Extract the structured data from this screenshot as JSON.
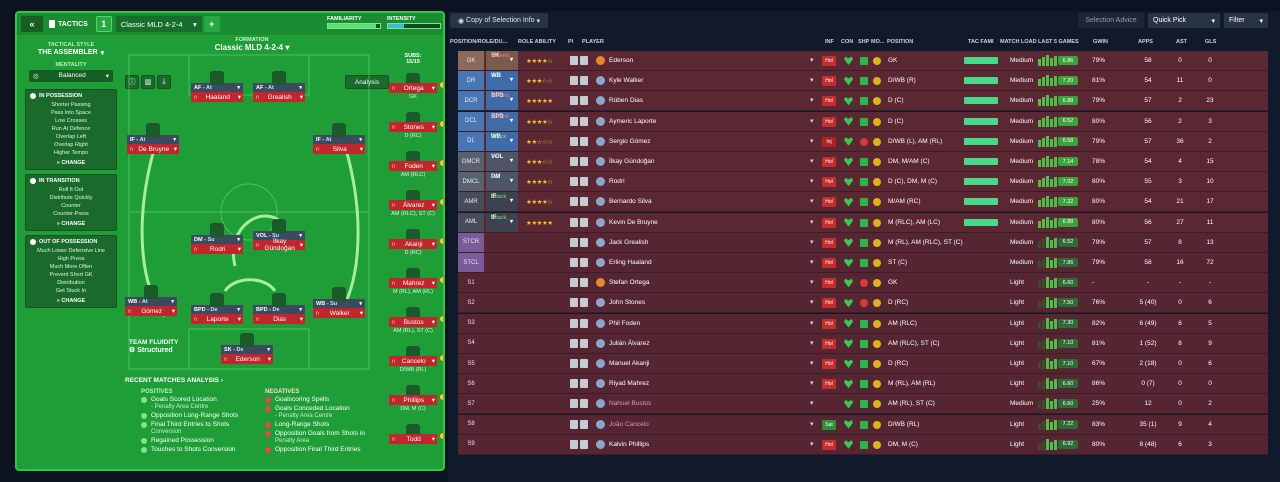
{
  "topbar": {
    "collapse": "«",
    "tactics_label": "TACTICS",
    "tactic_number": "1",
    "tactic_name": "Classic MLD 4-2-4",
    "add": "+",
    "familiarity_label": "FAMILIARITY",
    "familiarity_level": 0.92,
    "intensity_label": "INTENSITY",
    "intensity_level": 0.3
  },
  "sidebar": {
    "style_label": "TACTICAL STYLE",
    "style_value": "THE ASSEMBLER",
    "mentality_label": "MENTALITY",
    "mentality_value": "Balanced",
    "in_possession": {
      "title": "IN POSSESSION",
      "items": [
        "Shorter Passing",
        "Pass Into Space",
        "Low Crosses",
        "Run At Defence",
        "Overlap Left",
        "Overlap Right",
        "Higher Tempo"
      ],
      "change": "CHANGE"
    },
    "in_transition": {
      "title": "IN TRANSITION",
      "items": [
        "Roll It Out",
        "Distribute Quickly",
        "Counter",
        "Counter-Press"
      ],
      "change": "CHANGE"
    },
    "out_of_possession": {
      "title": "OUT OF POSSESSION",
      "items": [
        "Much Lower Defensive Line",
        "High Press",
        "Much More Often",
        "Prevent Short GK",
        "Distribution",
        "Get Stuck In"
      ],
      "change": "CHANGE"
    }
  },
  "formation": {
    "label": "FORMATION",
    "name": "Classic MLD 4-2-4",
    "analysis": "Analysis",
    "subs_label": "SUBS:",
    "subs_count": "15/15"
  },
  "pitch_players": [
    {
      "role": "AF",
      "duty": "At",
      "name": "Haaland"
    },
    {
      "role": "AF",
      "duty": "At",
      "name": "Grealish"
    },
    {
      "role": "IF",
      "duty": "At",
      "name": "De Bruyne"
    },
    {
      "role": "IF",
      "duty": "At",
      "name": "Silva"
    },
    {
      "role": "DM",
      "duty": "Su",
      "name": "Rodri"
    },
    {
      "role": "VOL",
      "duty": "Su",
      "name": "İlkay Gündoğan"
    },
    {
      "role": "WB",
      "duty": "At",
      "name": "Gómez"
    },
    {
      "role": "BPD",
      "duty": "De",
      "name": "Laporte"
    },
    {
      "role": "BPD",
      "duty": "De",
      "name": "Dias"
    },
    {
      "role": "WB",
      "duty": "Su",
      "name": "Walker"
    },
    {
      "role": "SK",
      "duty": "De",
      "name": "Ederson"
    }
  ],
  "subs": [
    {
      "name": "Ortega",
      "pos": "GK"
    },
    {
      "name": "Stones",
      "pos": "D (RC)"
    },
    {
      "name": "Foden",
      "pos": "AM (RLC)"
    },
    {
      "name": "Álvarez",
      "pos": "AM (RLC), ST (C)"
    },
    {
      "name": "Akanji",
      "pos": "D (RC)"
    },
    {
      "name": "Mahrez",
      "pos": "M (RL), AM (RL)"
    },
    {
      "name": "Bustos",
      "pos": "AM (RL), ST (C)"
    },
    {
      "name": "Cancelo",
      "pos": "D/WB (RL)"
    },
    {
      "name": "Phillips",
      "pos": "DM, M (C)"
    },
    {
      "name": "Todd",
      "pos": ""
    }
  ],
  "fluidity": {
    "label": "TEAM FLUIDITY",
    "value": "Structured"
  },
  "analysis": {
    "title": "RECENT MATCHES ANALYSIS",
    "positives_label": "POSITIVES",
    "negatives_label": "NEGATIVES",
    "positives": [
      {
        "text": "Goals Scored Location",
        "sub": "- Penalty Area Centre"
      },
      {
        "text": "Opposition Long-Range Shots",
        "sub": ""
      },
      {
        "text": "Final Third Entries to Shots",
        "sub": "Conversion"
      },
      {
        "text": "Regained Possession",
        "sub": ""
      },
      {
        "text": "Touches to Shots Conversion",
        "sub": ""
      }
    ],
    "negatives": [
      {
        "text": "Goalscoring Spells",
        "sub": ""
      },
      {
        "text": "Goals Conceded Location",
        "sub": "- Penalty Area Centre"
      },
      {
        "text": "Long-Range Shots",
        "sub": ""
      },
      {
        "text": "Opposition Goals from Shots in",
        "sub": "Penalty Area"
      },
      {
        "text": "Opposition Final Third Entries",
        "sub": ""
      }
    ]
  },
  "right_toolbar": {
    "copy": "Copy of Selection Info",
    "selection_advice": "Selection Advice",
    "quick_pick": "Quick Pick",
    "filter": "Filter"
  },
  "columns": {
    "pos": "POSITION/ROLE/DU...",
    "role_ability": "ROLE ABILITY",
    "pi": "PI",
    "player": "PLAYER",
    "inf": "INF",
    "con": "CON",
    "shp": "SHP",
    "mo": "MO...",
    "position": "POSITION",
    "tac_fam": "TAC FAMI",
    "match_load": "MATCH LOAD",
    "last5": "LAST 5 GAMES",
    "gwin": "GWIN",
    "apps": "APPS",
    "ast": "AST",
    "gls": "GLS"
  },
  "rows": [
    {
      "slot": "GK",
      "role": "SK",
      "duty": "Defend",
      "stars": "★★★★☆",
      "name": "Ederson",
      "inf": "Hol",
      "ship": "g",
      "position": "GK",
      "load": "Medium",
      "rating": "6.86",
      "gwin": "79%",
      "apps": "58",
      "ast": "0",
      "gls": "0"
    },
    {
      "slot": "DR",
      "role": "WB",
      "duty": "Su",
      "stars": "★★★☆☆",
      "name": "Kyle Walker",
      "inf": "Hol",
      "ship": "g",
      "position": "D/WB (R)",
      "load": "Medium",
      "rating": "7.20",
      "gwin": "81%",
      "apps": "54",
      "ast": "11",
      "gls": "0"
    },
    {
      "slot": "DCR",
      "role": "BPD",
      "duty": "Defend",
      "stars": "★★★★★",
      "name": "Rúben Dias",
      "inf": "Hol",
      "ship": "g",
      "position": "D (C)",
      "load": "Medium",
      "rating": "6.88",
      "gwin": "79%",
      "apps": "57",
      "ast": "2",
      "gls": "23"
    },
    {
      "slot": "DCL",
      "role": "BPD",
      "duty": "Defend",
      "stars": "★★★★☆",
      "name": "Aymeric Laporte",
      "inf": "Hol",
      "ship": "g",
      "position": "D (C)",
      "load": "Medium",
      "rating": "6.52",
      "gwin": "80%",
      "apps": "56",
      "ast": "2",
      "gls": "3"
    },
    {
      "slot": "DL",
      "role": "WB",
      "duty": "Attack",
      "stars": "★★☆☆☆",
      "name": "Sergio Gómez",
      "inf": "Inj",
      "ship": "r",
      "position": "D/WB (L), AM (RL)",
      "load": "Medium",
      "rating": "6.58",
      "gwin": "79%",
      "apps": "57",
      "ast": "36",
      "gls": "2"
    },
    {
      "slot": "DMCR",
      "role": "VOL",
      "duty": "Su",
      "stars": "★★★☆☆",
      "name": "İlkay Gündoğan",
      "inf": "Hol",
      "ship": "g",
      "position": "DM, M/AM (C)",
      "load": "Medium",
      "rating": "7.14",
      "gwin": "78%",
      "apps": "54",
      "ast": "4",
      "gls": "15"
    },
    {
      "slot": "DMCL",
      "role": "DM",
      "duty": "Su",
      "stars": "★★★★☆",
      "name": "Rodri",
      "inf": "Hol",
      "ship": "g",
      "position": "D (C), DM, M (C)",
      "load": "Medium",
      "rating": "7.02",
      "gwin": "80%",
      "apps": "55",
      "ast": "3",
      "gls": "10"
    },
    {
      "slot": "AMR",
      "role": "IF",
      "duty": "Attack",
      "stars": "★★★★☆",
      "name": "Bernardo Silva",
      "inf": "Hol",
      "ship": "g",
      "position": "M/AM (RC)",
      "load": "Medium",
      "rating": "7.22",
      "gwin": "80%",
      "apps": "54",
      "ast": "21",
      "gls": "17"
    },
    {
      "slot": "AML",
      "role": "IF",
      "duty": "Attack",
      "stars": "★★★★★",
      "name": "Kevin De Bruyne",
      "inf": "Hol",
      "ship": "g",
      "position": "M (RLC), AM (LC)",
      "load": "Medium",
      "rating": "6.88",
      "gwin": "80%",
      "apps": "56",
      "ast": "27",
      "gls": "11"
    },
    {
      "slot": "STCR",
      "role": "AF",
      "duty": "Attack",
      "stars": "★★★☆☆",
      "name": "Jack Grealish",
      "inf": "Hol",
      "ship": "g",
      "position": "M (RL), AM (RLC), ST (C)",
      "load": "Medium",
      "rating": "6.52",
      "gwin": "79%",
      "apps": "57",
      "ast": "8",
      "gls": "13"
    },
    {
      "slot": "STCL",
      "role": "AF",
      "duty": "Attack",
      "stars": "★★★★★",
      "name": "Erling Haaland",
      "inf": "Hol",
      "ship": "g",
      "position": "ST (C)",
      "load": "Medium",
      "rating": "7.86",
      "gwin": "79%",
      "apps": "58",
      "ast": "16",
      "gls": "72"
    },
    {
      "slot": "S1",
      "role": "",
      "duty": "",
      "stars": "",
      "name": "Stefan Ortega",
      "inf": "Hol",
      "ship": "r",
      "position": "GK",
      "load": "Light",
      "rating": "6.60",
      "gwin": "-",
      "apps": "-",
      "ast": "-",
      "gls": "-"
    },
    {
      "slot": "S2",
      "role": "",
      "duty": "",
      "stars": "",
      "name": "John Stones",
      "inf": "Hol",
      "ship": "r",
      "position": "D (RC)",
      "load": "Light",
      "rating": "7.50",
      "gwin": "76%",
      "apps": "5 (40)",
      "ast": "0",
      "gls": "6"
    },
    {
      "slot": "S3",
      "role": "",
      "duty": "",
      "stars": "",
      "name": "Phil Foden",
      "inf": "Hol",
      "ship": "g",
      "position": "AM (RLC)",
      "load": "Light",
      "rating": "7.30",
      "gwin": "82%",
      "apps": "6 (49)",
      "ast": "6",
      "gls": "5"
    },
    {
      "slot": "S4",
      "role": "",
      "duty": "",
      "stars": "",
      "name": "Julián Álvarez",
      "inf": "Hol",
      "ship": "g",
      "position": "AM (RLC), ST (C)",
      "load": "Light",
      "rating": "7.10",
      "gwin": "81%",
      "apps": "1 (52)",
      "ast": "8",
      "gls": "9"
    },
    {
      "slot": "S5",
      "role": "",
      "duty": "",
      "stars": "",
      "name": "Manuel Akanji",
      "inf": "Hol",
      "ship": "g",
      "position": "D (RC)",
      "load": "Light",
      "rating": "7.10",
      "gwin": "67%",
      "apps": "2 (18)",
      "ast": "0",
      "gls": "6"
    },
    {
      "slot": "S6",
      "role": "",
      "duty": "",
      "stars": "",
      "name": "Riyad Mahrez",
      "inf": "Hol",
      "ship": "g",
      "position": "M (RL), AM (RL)",
      "load": "Light",
      "rating": "6.60",
      "gwin": "86%",
      "apps": "0 (7)",
      "ast": "0",
      "gls": "0"
    },
    {
      "slot": "S7",
      "role": "",
      "duty": "",
      "stars": "",
      "name": "Nahuel Bustos",
      "inf": "",
      "ship": "g",
      "position": "AM (RL), ST (C)",
      "load": "Medium",
      "rating": "6.60",
      "gwin": "25%",
      "apps": "12",
      "ast": "0",
      "gls": "2",
      "unreg": true
    },
    {
      "slot": "S8",
      "role": "",
      "duty": "",
      "stars": "",
      "name": "João Cancelo",
      "inf": "Sat",
      "ship": "g",
      "position": "D/WB (RL)",
      "load": "Light",
      "rating": "7.22",
      "gwin": "83%",
      "apps": "35 (1)",
      "ast": "9",
      "gls": "4",
      "unreg": true
    },
    {
      "slot": "S9",
      "role": "",
      "duty": "",
      "stars": "",
      "name": "Kalvin Phillips",
      "inf": "Hol",
      "ship": "g",
      "position": "DM, M (C)",
      "load": "Light",
      "rating": "6.92",
      "gwin": "80%",
      "apps": "8 (48)",
      "ast": "6",
      "gls": "3"
    }
  ]
}
